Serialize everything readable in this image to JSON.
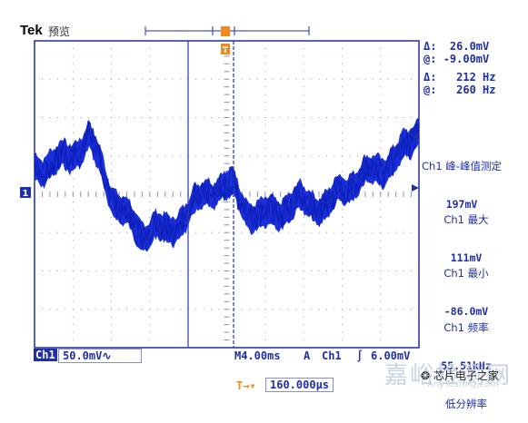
{
  "header": {
    "brand": "Tek",
    "mode": "预览"
  },
  "cursor_readouts": {
    "delta_v_label": "Δ:",
    "delta_v_value": "26.0mV",
    "at_v_label": "@:",
    "at_v_value": "-9.00mV",
    "delta_f_label": "Δ:",
    "delta_f_value": "212 Hz",
    "at_f_label": "@:",
    "at_f_value": "260 Hz"
  },
  "measurements": [
    {
      "title": "Ch1 峰-峰值测定",
      "value": "197mV"
    },
    {
      "title": "Ch1 最大",
      "value": "111mV"
    },
    {
      "title": "Ch1 最小",
      "value": "-86.0mV"
    },
    {
      "title": "Ch1 频率",
      "value": "55.51kHz",
      "note": "低分辨率"
    }
  ],
  "bottom": {
    "channel": "Ch1",
    "volts_div": "50.0mV",
    "coupling_symbol": "∿",
    "timebase": "M4.00ms",
    "trigger_mode": "A",
    "trigger_channel": "Ch1",
    "trigger_slope": "∫",
    "trigger_level": "6.00mV",
    "trigger_pos_value": "160.000μs",
    "trigger_pos_icon": "T→▾"
  },
  "markers": {
    "ground_marker": "1",
    "trigger_marker": "T"
  },
  "watermark": {
    "cn": "嘉峪检测网",
    "en": "AnyTesting.com",
    "logo": "芯片电子之家"
  },
  "colors": {
    "trace": "#1a2fd8",
    "text": "#1f2fa8",
    "grid": "#9aa0c8",
    "accent_orange": "#f08a1c"
  }
}
